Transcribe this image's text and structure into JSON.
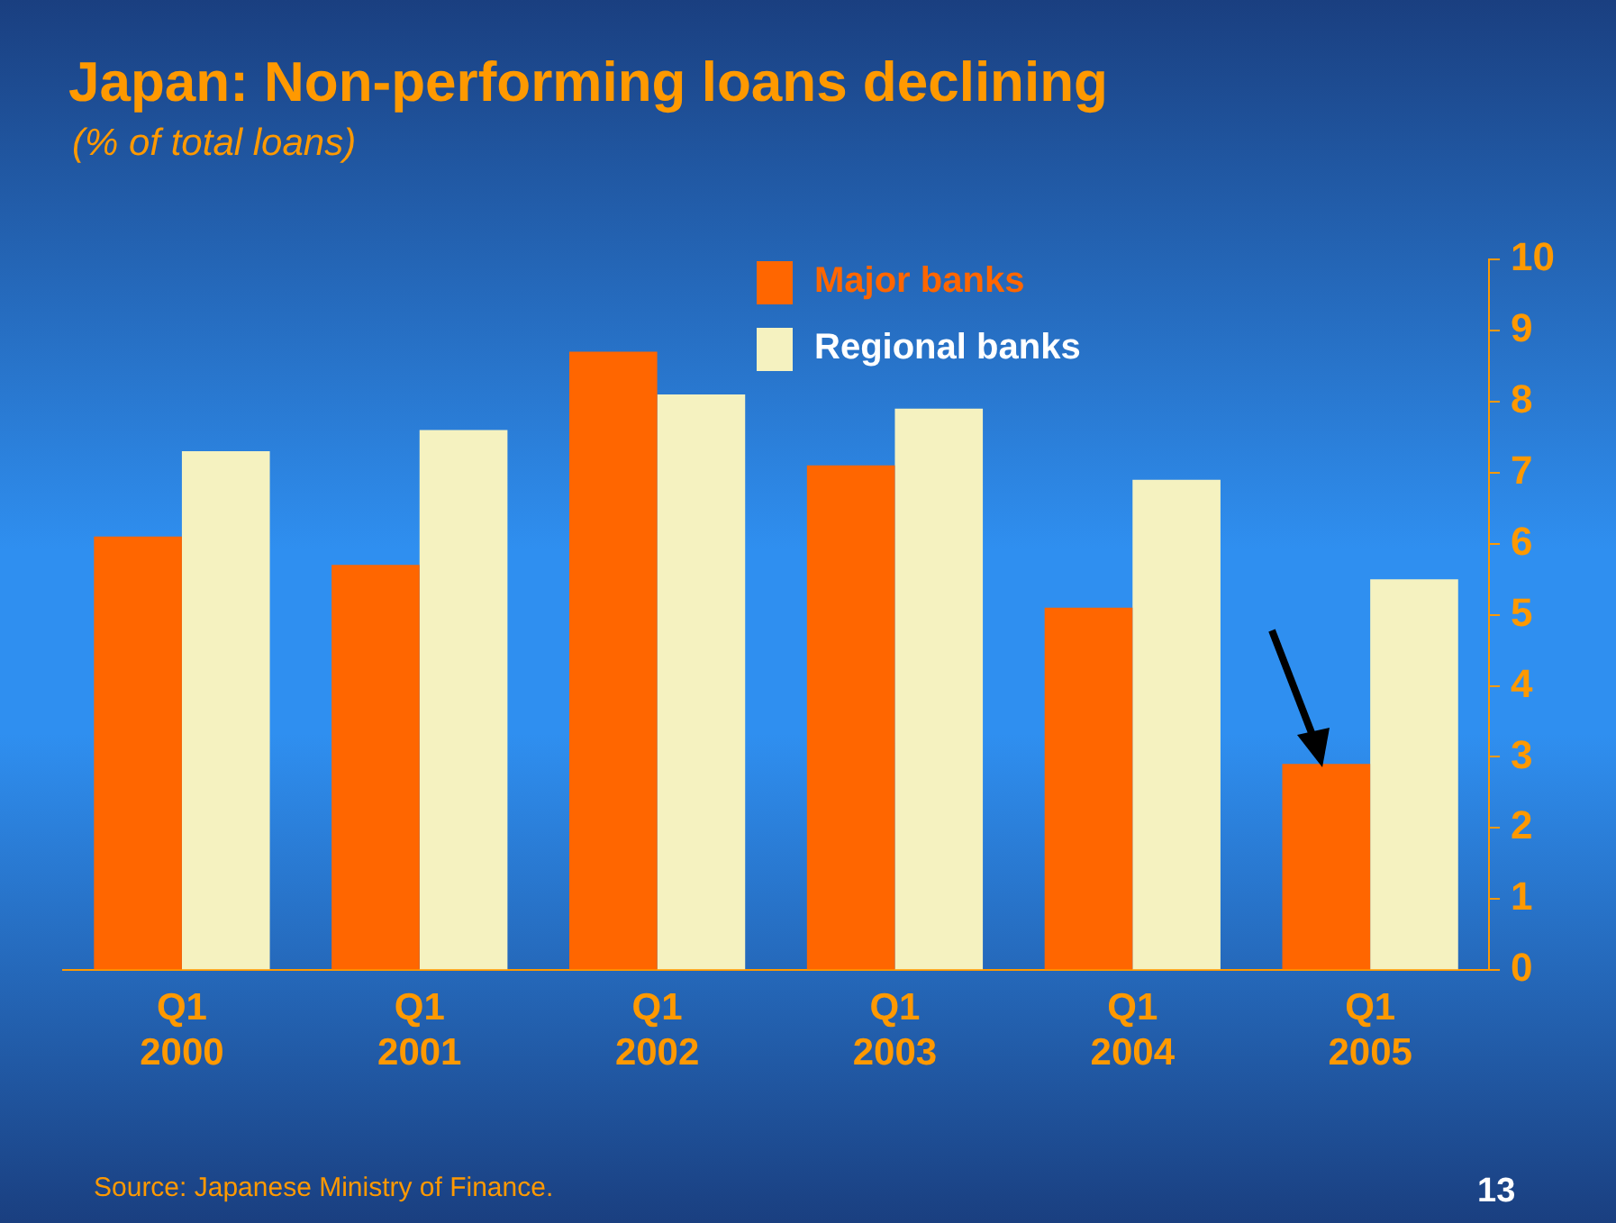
{
  "chart_data": {
    "type": "bar",
    "title": "Japan: Non-performing loans declining",
    "subtitle": "(% of total loans)",
    "categories": [
      "Q1 2000",
      "Q1 2001",
      "Q1 2002",
      "Q1 2003",
      "Q1 2004",
      "Q1 2005"
    ],
    "series": [
      {
        "name": "Major banks",
        "color": "#ff6600",
        "values": [
          6.1,
          5.7,
          8.7,
          7.1,
          5.1,
          2.9
        ]
      },
      {
        "name": "Regional banks",
        "color": "#f5f2c0",
        "values": [
          7.3,
          7.6,
          8.1,
          7.9,
          6.9,
          5.5
        ]
      }
    ],
    "ylim": [
      0,
      10
    ],
    "yticks": [
      0,
      1,
      2,
      3,
      4,
      5,
      6,
      7,
      8,
      9,
      10
    ],
    "grid": false,
    "legend": "top",
    "annotations": [
      "Source: Japanese Ministry of Finance.",
      "13"
    ]
  }
}
